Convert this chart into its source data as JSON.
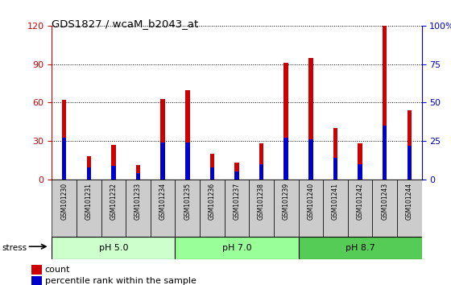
{
  "title": "GDS1827 / wcaM_b2043_at",
  "samples": [
    "GSM101230",
    "GSM101231",
    "GSM101232",
    "GSM101233",
    "GSM101234",
    "GSM101235",
    "GSM101236",
    "GSM101237",
    "GSM101238",
    "GSM101239",
    "GSM101240",
    "GSM101241",
    "GSM101242",
    "GSM101243",
    "GSM101244"
  ],
  "count_values": [
    62,
    18,
    27,
    11,
    63,
    70,
    20,
    13,
    28,
    91,
    95,
    40,
    28,
    120,
    54
  ],
  "percentile_values": [
    27,
    8,
    9,
    4,
    24,
    24,
    8,
    5,
    10,
    27,
    26,
    14,
    10,
    35,
    22
  ],
  "groups": [
    {
      "label": "pH 5.0",
      "start": 0,
      "end": 5,
      "color": "#ccffcc"
    },
    {
      "label": "pH 7.0",
      "start": 5,
      "end": 10,
      "color": "#99ff99"
    },
    {
      "label": "pH 8.7",
      "start": 10,
      "end": 15,
      "color": "#55cc55"
    }
  ],
  "ylim_left": [
    0,
    120
  ],
  "ylim_right": [
    0,
    100
  ],
  "yticks_left": [
    0,
    30,
    60,
    90,
    120
  ],
  "yticks_right": [
    0,
    25,
    50,
    75,
    100
  ],
  "ytick_labels_right": [
    "0",
    "25",
    "50",
    "75",
    "100%"
  ],
  "bar_color_red": "#cc0000",
  "bar_color_blue": "#0000cc",
  "red_bar_width": 0.18,
  "blue_bar_width": 0.18,
  "count_label": "count",
  "percentile_label": "percentile rank within the sample",
  "stress_label": "stress",
  "xticklabel_bg": "#cccccc"
}
